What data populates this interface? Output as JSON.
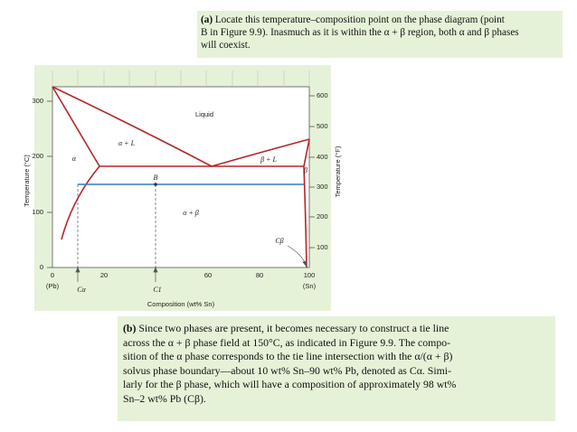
{
  "top_note": {
    "label": "(a)",
    "lines": [
      "Locate this temperature–composition point on the phase diagram (point",
      "B in Figure 9.9). Inasmuch as it is within the α + β region, both α and β phases",
      "will coexist."
    ]
  },
  "figure": {
    "y_label_left": "Temperature (°C)",
    "y_label_right": "Temperature (°F)",
    "left_ticks": [
      "300",
      "200",
      "100",
      "0"
    ],
    "right_ticks": [
      "600",
      "500",
      "400",
      "300",
      "200",
      "100"
    ],
    "x_ticks": [
      "0",
      "20",
      "60",
      "80",
      "100"
    ],
    "x_end_left": "(Pb)",
    "x_end_right": "(Sn)",
    "x_label": "Composition (wt% Sn)",
    "c_alpha": "Cα",
    "c_1": "C1",
    "c_beta": "Cβ",
    "regions": {
      "liquid": "Liquid",
      "alpha_l": "α + L",
      "alpha": "α",
      "beta_l": "β + L",
      "beta": "β",
      "point": "B",
      "alpha_beta": "α + β"
    }
  },
  "bottom_note": {
    "label": "(b)",
    "lines": [
      "Since two phases are present, it becomes necessary to construct a tie line",
      "across the α + β phase field at 150°C, as indicated in Figure 9.9. The compo-",
      "sition of the α phase corresponds to the tie line intersection with the α/(α + β)",
      "solvus phase boundary—about 10 wt% Sn–90 wt% Pb, denoted as Cα. Simi-",
      "larly for the β phase, which will have a composition of approximately 98 wt%",
      "Sn–2 wt% Pb (Cβ)."
    ]
  }
}
